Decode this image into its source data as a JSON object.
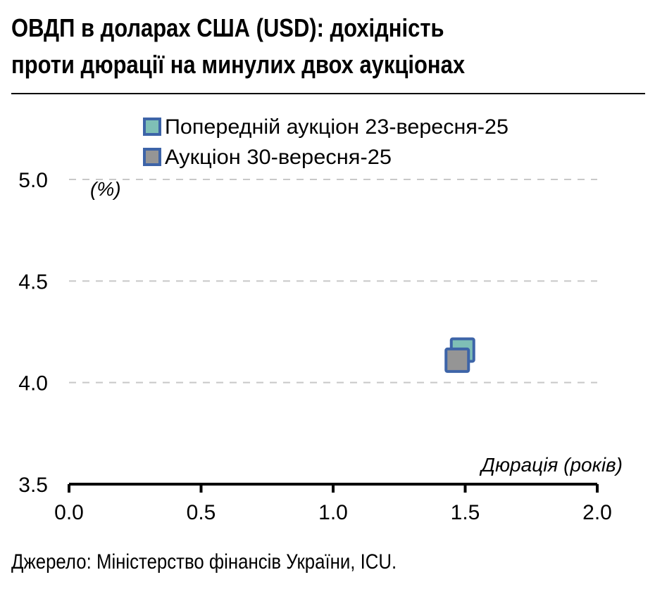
{
  "title_line1": "ОВДП в доларах США (USD): дохідність",
  "title_line2": "проти дюрації на минулих двох аукціонах",
  "source": "Джерело: Міністерство фінансів України, ICU.",
  "chart_data": {
    "type": "scatter",
    "title": "ОВДП в доларах США (USD): дохідність проти дюрації на минулих двох аукціонах",
    "xlabel": "Дюрація (років)",
    "ylabel": "(%)",
    "xlim": [
      0.0,
      2.0
    ],
    "ylim": [
      3.5,
      5.0
    ],
    "xticks": [
      "0.0",
      "0.5",
      "1.0",
      "1.5",
      "2.0"
    ],
    "xtick_values": [
      0,
      0.5,
      1,
      1.5,
      2
    ],
    "yticks": [
      "3.5",
      "4.0",
      "4.5",
      "5.0"
    ],
    "ytick_values": [
      3.5,
      4.0,
      4.5,
      5.0
    ],
    "grid": "horizontal dashed",
    "legend_position": "top-left",
    "series": [
      {
        "name": "Попередній аукціон 23-вересня-25",
        "color": "#7fbfb6",
        "edge": "#3d64a8",
        "points": [
          {
            "x": 1.49,
            "y": 4.16
          }
        ]
      },
      {
        "name": "Аукціон 30-вересня-25",
        "color": "#959595",
        "edge": "#3d64a8",
        "points": [
          {
            "x": 1.47,
            "y": 4.11
          }
        ]
      }
    ]
  }
}
